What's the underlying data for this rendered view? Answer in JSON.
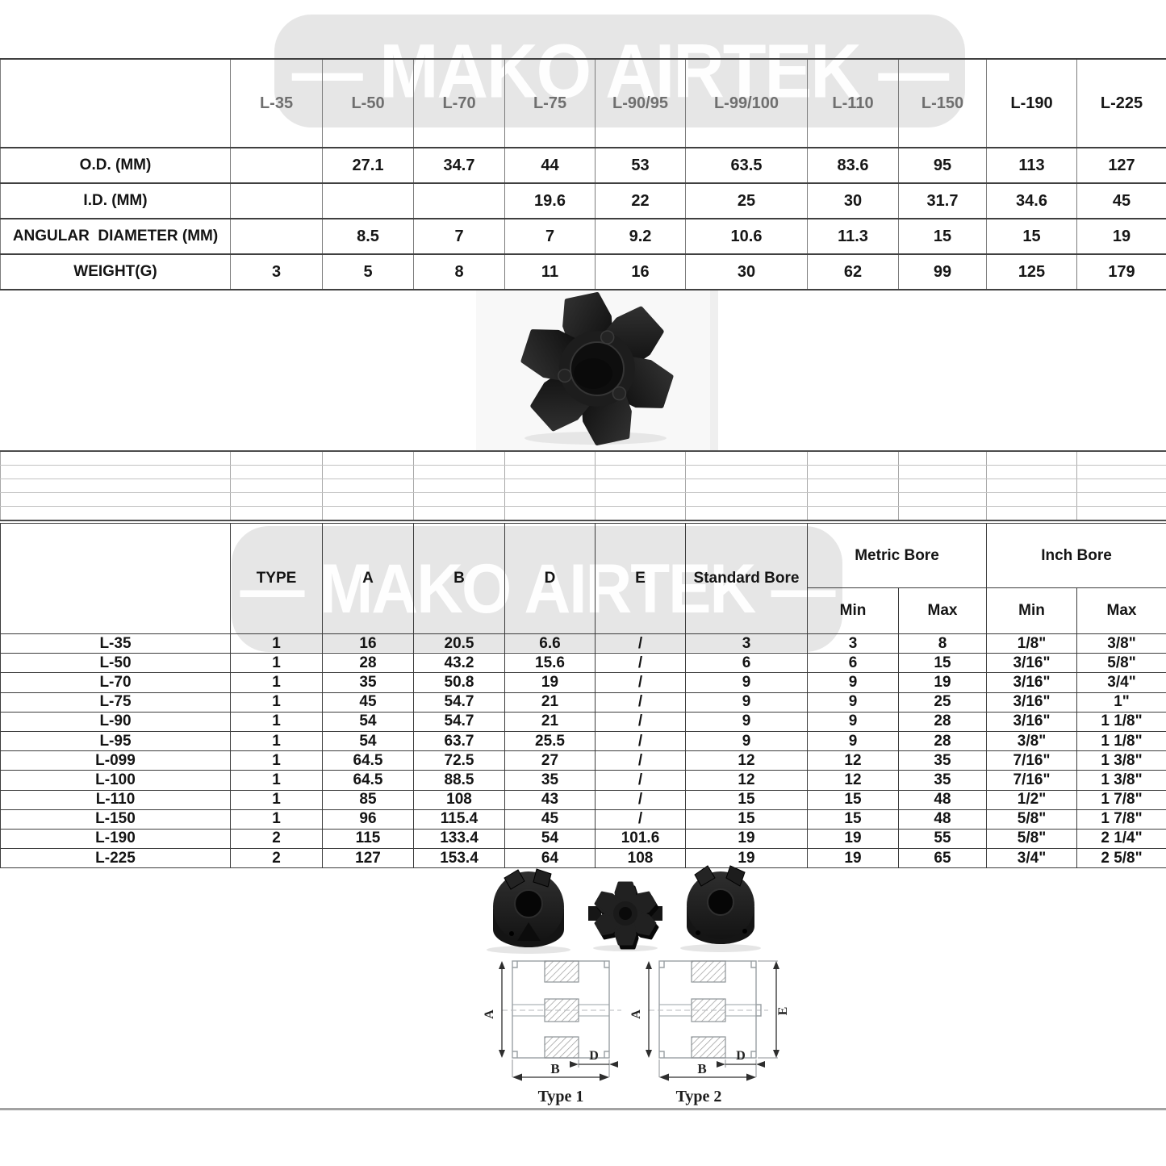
{
  "watermark": {
    "text": "— MAKO AIRTEK —",
    "background": "#e4e4e4",
    "text_color": "#ffffff"
  },
  "table1": {
    "corner_label": "",
    "columns": [
      "L-35",
      "L-50",
      "L-70",
      "L-75",
      "L-90/95",
      "L-99/100",
      "L-110",
      "L-150",
      "L-190",
      "L-225"
    ],
    "gray_column_count": 8,
    "rows": [
      {
        "label": "O.D. (MM)",
        "values": [
          "",
          "27.1",
          "34.7",
          "44",
          "53",
          "63.5",
          "83.6",
          "95",
          "113",
          "127"
        ]
      },
      {
        "label": "I.D. (MM)",
        "values": [
          "",
          "",
          "",
          "19.6",
          "22",
          "25",
          "30",
          "31.7",
          "34.6",
          "45"
        ]
      },
      {
        "label": "ANGULAR  DIAMETER (MM)",
        "values": [
          "",
          "8.5",
          "7",
          "7",
          "9.2",
          "10.6",
          "11.3",
          "15",
          "15",
          "19"
        ]
      },
      {
        "label": "WEIGHT(G)",
        "values": [
          "3",
          "5",
          "8",
          "11",
          "16",
          "30",
          "62",
          "99",
          "125",
          "179"
        ]
      }
    ]
  },
  "table2": {
    "corner_label": "",
    "headers": {
      "type": "TYPE",
      "a": "A",
      "b": "B",
      "d": "D",
      "e": "E",
      "standard_bore": "Standard Bore",
      "metric_bore": "Metric Bore",
      "inch_bore": "Inch Bore",
      "min": "Min",
      "max": "Max"
    },
    "rows": [
      {
        "label": "L-35",
        "values": [
          "1",
          "16",
          "20.5",
          "6.6",
          "/",
          "3",
          "3",
          "8",
          "1/8\"",
          "3/8\""
        ]
      },
      {
        "label": "L-50",
        "values": [
          "1",
          "28",
          "43.2",
          "15.6",
          "/",
          "6",
          "6",
          "15",
          "3/16\"",
          "5/8\""
        ]
      },
      {
        "label": "L-70",
        "values": [
          "1",
          "35",
          "50.8",
          "19",
          "/",
          "9",
          "9",
          "19",
          "3/16\"",
          "3/4\""
        ]
      },
      {
        "label": "L-75",
        "values": [
          "1",
          "45",
          "54.7",
          "21",
          "/",
          "9",
          "9",
          "25",
          "3/16\"",
          "1\""
        ]
      },
      {
        "label": "L-90",
        "values": [
          "1",
          "54",
          "54.7",
          "21",
          "/",
          "9",
          "9",
          "28",
          "3/16\"",
          "1 1/8\""
        ]
      },
      {
        "label": "L-95",
        "values": [
          "1",
          "54",
          "63.7",
          "25.5",
          "/",
          "9",
          "9",
          "28",
          "3/8\"",
          "1 1/8\""
        ]
      },
      {
        "label": "L-099",
        "values": [
          "1",
          "64.5",
          "72.5",
          "27",
          "/",
          "12",
          "12",
          "35",
          "7/16\"",
          "1 3/8\""
        ]
      },
      {
        "label": "L-100",
        "values": [
          "1",
          "64.5",
          "88.5",
          "35",
          "/",
          "12",
          "12",
          "35",
          "7/16\"",
          "1 3/8\""
        ]
      },
      {
        "label": "L-110",
        "values": [
          "1",
          "85",
          "108",
          "43",
          "/",
          "15",
          "15",
          "48",
          "1/2\"",
          "1 7/8\""
        ]
      },
      {
        "label": "L-150",
        "values": [
          "1",
          "96",
          "115.4",
          "45",
          "/",
          "15",
          "15",
          "48",
          "5/8\"",
          "1 7/8\""
        ]
      },
      {
        "label": "L-190",
        "values": [
          "2",
          "115",
          "133.4",
          "54",
          "101.6",
          "19",
          "19",
          "55",
          "5/8\"",
          "2 1/4\""
        ]
      },
      {
        "label": "L-225",
        "values": [
          "2",
          "127",
          "153.4",
          "64",
          "108",
          "19",
          "19",
          "65",
          "3/4\"",
          "2 5/8\""
        ]
      }
    ]
  },
  "diagrams": {
    "dim_a": "A",
    "dim_b": "B",
    "dim_d": "D",
    "dim_e": "E",
    "type1_caption": "Type 1",
    "type2_caption": "Type 2"
  },
  "colors": {
    "header_muted": "#6f6f6f",
    "header_dark": "#161616",
    "grid_dark": "#3d3d3d",
    "grid_light": "#bfbfbf",
    "part_black": "#1a1a1a",
    "watermark_bg": "#e4e4e4"
  }
}
